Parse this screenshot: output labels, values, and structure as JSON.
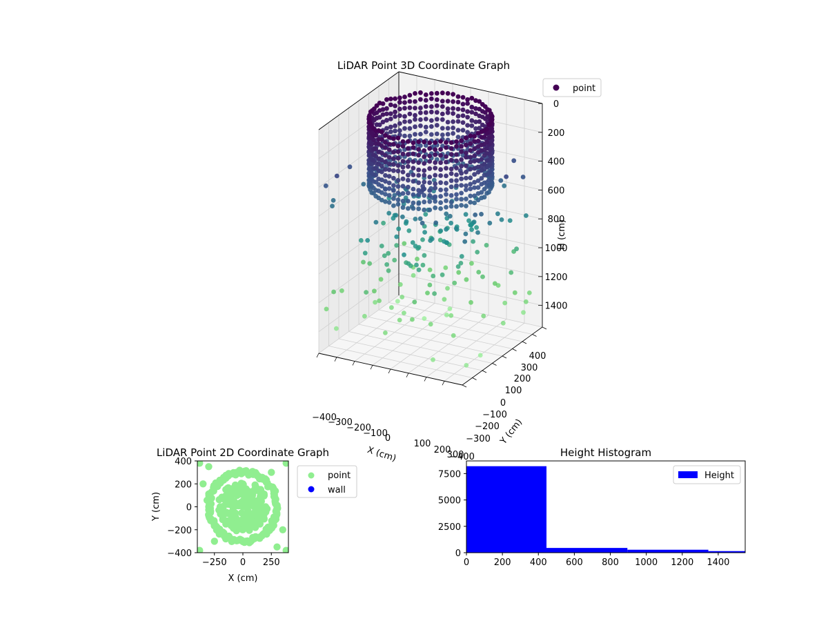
{
  "chart_data": [
    {
      "type": "scatter3d",
      "title": "LiDAR Point 3D Coordinate Graph",
      "xlabel": "X (cm)",
      "ylabel": "Y (cm)",
      "zlabel": "H (cm)",
      "xticks": [
        "−400",
        "−300",
        "−200",
        "−100",
        "0",
        "100",
        "200",
        "300"
      ],
      "yticks": [
        "−400",
        "−300",
        "−200",
        "−100",
        "0",
        "100",
        "200",
        "300",
        "400"
      ],
      "zticks": [
        "0",
        "200",
        "400",
        "600",
        "800",
        "1000",
        "1200",
        "1400"
      ],
      "xlim": [
        -400,
        400
      ],
      "ylim": [
        -400,
        400
      ],
      "zlim": [
        0,
        1550
      ],
      "z_inverted": true,
      "grid": true,
      "colormap": "viridis",
      "legend": {
        "placement": "upper-right",
        "entries": [
          {
            "label": "point",
            "color": "#440154"
          }
        ]
      },
      "series": [
        {
          "name": "point",
          "description_points": [
            {
              "x": -300,
              "y": 0,
              "z": 20
            },
            {
              "x": -212,
              "y": 212,
              "z": 20
            },
            {
              "x": 0,
              "y": 300,
              "z": 20
            },
            {
              "x": 212,
              "y": 212,
              "z": 20
            },
            {
              "x": 300,
              "y": 0,
              "z": 20
            },
            {
              "x": 212,
              "y": -212,
              "z": 20
            },
            {
              "x": 0,
              "y": -300,
              "z": 20
            },
            {
              "x": -212,
              "y": -212,
              "z": 20
            },
            {
              "x": -300,
              "y": 0,
              "z": 400
            },
            {
              "x": 0,
              "y": 300,
              "z": 400
            },
            {
              "x": 300,
              "y": 0,
              "z": 400
            },
            {
              "x": 0,
              "y": -300,
              "z": 400
            },
            {
              "x": -150,
              "y": 120,
              "z": 700
            },
            {
              "x": 120,
              "y": -80,
              "z": 850
            },
            {
              "x": -60,
              "y": -150,
              "z": 950
            },
            {
              "x": 380,
              "y": 360,
              "z": 1100
            },
            {
              "x": -380,
              "y": -360,
              "z": 1300
            },
            {
              "x": 350,
              "y": -380,
              "z": 1450
            },
            {
              "x": -380,
              "y": 380,
              "z": 1200
            },
            {
              "x": 200,
              "y": 380,
              "z": 1000
            }
          ]
        }
      ]
    },
    {
      "type": "scatter",
      "title": "LiDAR Point 2D Coordinate Graph",
      "xlabel": "X (cm)",
      "ylabel": "Y (cm)",
      "xlim": [
        -400,
        400
      ],
      "ylim": [
        -400,
        400
      ],
      "xticks": [
        "−250",
        "0",
        "250"
      ],
      "yticks": [
        "400",
        "200",
        "0",
        "−200",
        "−400"
      ],
      "legend": {
        "placement": "outside-right",
        "entries": [
          {
            "label": "point",
            "color": "#90ee90"
          },
          {
            "label": "wall",
            "color": "#0000ff"
          }
        ]
      },
      "series": [
        {
          "name": "point",
          "color": "#90ee90",
          "points": [
            [
              -300,
              0
            ],
            [
              -212,
              212
            ],
            [
              0,
              300
            ],
            [
              212,
              212
            ],
            [
              300,
              0
            ],
            [
              212,
              -212
            ],
            [
              0,
              -300
            ],
            [
              -212,
              -212
            ],
            [
              -380,
              380
            ],
            [
              380,
              380
            ],
            [
              -380,
              -380
            ],
            [
              380,
              -380
            ],
            [
              -150,
              150
            ],
            [
              150,
              150
            ],
            [
              -150,
              -150
            ],
            [
              150,
              -150
            ],
            [
              0,
              0
            ],
            [
              -50,
              100
            ],
            [
              50,
              -100
            ],
            [
              100,
              50
            ],
            [
              -100,
              -50
            ],
            [
              0,
              200
            ],
            [
              0,
              -200
            ],
            [
              -200,
              0
            ],
            [
              200,
              0
            ],
            [
              -350,
              200
            ],
            [
              350,
              -200
            ],
            [
              -250,
              -300
            ],
            [
              250,
              300
            ],
            [
              300,
              -350
            ],
            [
              -300,
              350
            ]
          ]
        },
        {
          "name": "wall",
          "color": "#0000ff",
          "points": []
        }
      ]
    },
    {
      "type": "bar",
      "title": "Height Histogram",
      "xlabel": "",
      "ylabel": "",
      "xlim": [
        0,
        1550
      ],
      "ylim": [
        0,
        8700
      ],
      "xticks": [
        "0",
        "200",
        "400",
        "600",
        "800",
        "1000",
        "1200",
        "1400"
      ],
      "yticks": [
        "0",
        "2500",
        "5000",
        "7500"
      ],
      "color": "#0000ff",
      "legend": {
        "placement": "upper-right",
        "entries": [
          {
            "label": "Height",
            "color": "#0000ff"
          }
        ]
      },
      "bins": [
        {
          "from": 0,
          "to": 445,
          "count": 8200
        },
        {
          "from": 445,
          "to": 895,
          "count": 450
        },
        {
          "from": 895,
          "to": 1345,
          "count": 280
        },
        {
          "from": 1345,
          "to": 1550,
          "count": 150
        }
      ]
    }
  ]
}
